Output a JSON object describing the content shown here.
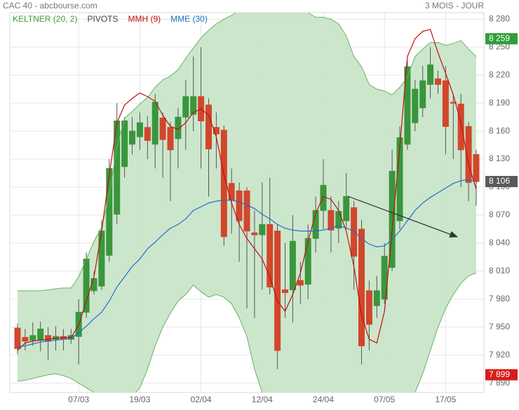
{
  "chart_data": {
    "type": "candlestick",
    "title": "CAC 40 - abcbourse.com",
    "subtitle": "3 MOIS - JOUR",
    "categories": [
      null,
      null,
      null,
      null,
      null,
      null,
      null,
      null,
      "07/03",
      null,
      null,
      null,
      null,
      null,
      null,
      null,
      "19/03",
      null,
      null,
      null,
      null,
      null,
      null,
      null,
      "02/04",
      null,
      null,
      null,
      null,
      null,
      null,
      null,
      "12/04",
      null,
      null,
      null,
      null,
      null,
      null,
      null,
      "24/04",
      null,
      null,
      null,
      null,
      null,
      null,
      null,
      "07/05",
      null,
      null,
      null,
      null,
      null,
      null,
      null,
      "17/05",
      null,
      null,
      null,
      null
    ],
    "ohlc": {
      "up_color": "#3a963c",
      "down_color": "#d2462c",
      "open": [
        7949,
        7939,
        7936,
        7936,
        7941,
        7937,
        7940,
        7937,
        7940,
        7966,
        7989,
        7994,
        8027,
        8071,
        8122,
        8146,
        8154,
        8164,
        8146,
        8174,
        8164,
        8152,
        8175,
        8178,
        8197,
        8188,
        8164,
        8161,
        8104,
        8096,
        8096,
        8051,
        8049,
        8060,
        8053,
        7990,
        7990,
        8000,
        7996,
        8045,
        8075,
        8075,
        8056,
        8064,
        8078,
        8055,
        7989,
        7973,
        7980,
        8014,
        8064,
        8146,
        8169,
        8185,
        8210,
        8216,
        8214,
        8191,
        8189,
        8165,
        8135
      ],
      "high": [
        7954,
        7948,
        7955,
        7956,
        7950,
        7951,
        7948,
        7948,
        7980,
        8030,
        8010,
        8065,
        8130,
        8190,
        8175,
        8175,
        8180,
        8176,
        8200,
        8180,
        8170,
        8185,
        8215,
        8240,
        8250,
        8195,
        8180,
        8166,
        8120,
        8105,
        8100,
        8075,
        8105,
        8110,
        8060,
        8040,
        8070,
        8020,
        8060,
        8090,
        8130,
        8090,
        8085,
        8115,
        8085,
        8065,
        8000,
        8005,
        8040,
        8140,
        8165,
        8235,
        8215,
        8230,
        8250,
        8225,
        8230,
        8200,
        8200,
        8170,
        8140
      ],
      "low": [
        7921,
        7925,
        7930,
        7924,
        7915,
        7925,
        7925,
        7932,
        7910,
        7960,
        7985,
        7990,
        8020,
        8060,
        8110,
        8135,
        8140,
        8130,
        8120,
        8110,
        8085,
        8120,
        8140,
        8160,
        8120,
        8090,
        8120,
        8037,
        8050,
        8020,
        7970,
        7960,
        7990,
        7985,
        7905,
        7960,
        7955,
        7975,
        7980,
        8030,
        8055,
        8030,
        8040,
        8055,
        7990,
        7910,
        7925,
        7960,
        7975,
        8010,
        8055,
        8140,
        8160,
        8175,
        8195,
        8200,
        8135,
        8130,
        8100,
        8085,
        8080
      ],
      "close": [
        7927,
        7935,
        7941,
        7948,
        7935,
        7940,
        7937,
        7941,
        7966,
        8023,
        8002,
        8053,
        8120,
        8171,
        8171,
        8160,
        8169,
        8150,
        8191,
        8151,
        8140,
        8175,
        8197,
        8197,
        8171,
        8141,
        8157,
        8047,
        8086,
        8064,
        8053,
        8049,
        8060,
        7993,
        7925,
        7987,
        8042,
        7995,
        8045,
        8075,
        8102,
        8054,
        8074,
        8090,
        8026,
        7930,
        7953,
        7989,
        8026,
        8117,
        8153,
        8229,
        8205,
        8214,
        8231,
        8210,
        8165,
        8190,
        8140,
        8105,
        8106
      ]
    },
    "indicators": [
      {
        "name": "KELTNER (20, 2)",
        "color": "#3f9f3f",
        "fill": "#c9e5c9",
        "line": "#66b266",
        "upper": [
          7989,
          7989,
          7989,
          7989,
          7990,
          7991,
          7992,
          7992,
          8004,
          8023,
          8042,
          8057,
          8091,
          8143,
          8174,
          8181,
          8189,
          8196,
          8207,
          8215,
          8219,
          8226,
          8238,
          8249,
          8260,
          8268,
          8275,
          8280,
          8284,
          8290,
          8295,
          8298,
          8300,
          8300,
          8298,
          8295,
          8292,
          8290,
          8287,
          8282,
          8282,
          8280,
          8275,
          8262,
          8240,
          8229,
          8210,
          8205,
          8203,
          8199,
          8207,
          8218,
          8240,
          8248,
          8255,
          8255,
          8252,
          8254,
          8257,
          8248,
          8240
        ],
        "lower": [
          7892,
          7893,
          7895,
          7897,
          7899,
          7900,
          7898,
          7895,
          7890,
          7885,
          7880,
          7875,
          7872,
          7870,
          7872,
          7876,
          7885,
          7905,
          7930,
          7950,
          7965,
          7978,
          7985,
          7995,
          7988,
          7982,
          7985,
          7982,
          7975,
          7960,
          7940,
          7905,
          7880,
          7860,
          7850,
          7845,
          7842,
          7840,
          7840,
          7840,
          7842,
          7845,
          7848,
          7850,
          7850,
          7848,
          7845,
          7843,
          7842,
          7845,
          7850,
          7865,
          7880,
          7900,
          7925,
          7950,
          7970,
          7985,
          7997,
          8005,
          8008
        ]
      },
      {
        "name": "PIVOTS",
        "color": "#444444"
      },
      {
        "name": "MMH (9)",
        "color": "#c01010",
        "values": [
          7925,
          7933,
          7935,
          7936,
          7937,
          7938,
          7939,
          7939,
          7952,
          7978,
          8004,
          8053,
          8113,
          8169,
          8188,
          8195,
          8201,
          8197,
          8192,
          8177,
          8165,
          8162,
          8169,
          8180,
          8184,
          8177,
          8154,
          8113,
          8083,
          8060,
          8045,
          8034,
          8023,
          8004,
          7978,
          7967,
          7985,
          8008,
          8042,
          8072,
          8090,
          8087,
          8075,
          8053,
          8015,
          7963,
          7937,
          7933,
          7967,
          8053,
          8143,
          8240,
          8259,
          8267,
          8269,
          8244,
          8222,
          8199,
          8169,
          8124,
          8098
        ]
      },
      {
        "name": "MME (30)",
        "color": "#1f6fc8",
        "values": [
          7929,
          7930,
          7932,
          7934,
          7935,
          7936,
          7937,
          7938,
          7944,
          7951,
          7959,
          7966,
          7978,
          7993,
          8004,
          8015,
          8023,
          8034,
          8041,
          8049,
          8056,
          8060,
          8066,
          8075,
          8079,
          8083,
          8085,
          8086,
          8086,
          8084,
          8081,
          8077,
          8071,
          8066,
          8060,
          8056,
          8054,
          8053,
          8053,
          8053,
          8054,
          8056,
          8059,
          8056,
          8053,
          8045,
          8039,
          8036,
          8037,
          8044,
          8053,
          8064,
          8075,
          8083,
          8089,
          8094,
          8099,
          8104,
          8107,
          8108,
          8106
        ]
      }
    ],
    "last_labels": [
      {
        "value": 8259,
        "label": "8 259",
        "color": "#2f9e3a"
      },
      {
        "value": 8106,
        "label": "8 106",
        "color": "#5a5a5a"
      },
      {
        "value": 7899,
        "label": "7 899",
        "color": "#d81c1c"
      }
    ],
    "ylim": [
      7880,
      8287
    ],
    "yticks": [
      {
        "value": 7890,
        "label": "7 890"
      },
      {
        "value": 7920,
        "label": "7 920"
      },
      {
        "value": 7950,
        "label": "7 950"
      },
      {
        "value": 7980,
        "label": "7 980"
      },
      {
        "value": 8010,
        "label": "8 010"
      },
      {
        "value": 8040,
        "label": "8 040"
      },
      {
        "value": 8070,
        "label": "8 070"
      },
      {
        "value": 8100,
        "label": "8 100"
      },
      {
        "value": 8130,
        "label": "8 130"
      },
      {
        "value": 8160,
        "label": "8 160"
      },
      {
        "value": 8190,
        "label": "8 190"
      },
      {
        "value": 8220,
        "label": "8 220"
      },
      {
        "value": 8250,
        "label": "8 250"
      },
      {
        "value": 8280,
        "label": "8 280"
      }
    ],
    "grid": true
  }
}
